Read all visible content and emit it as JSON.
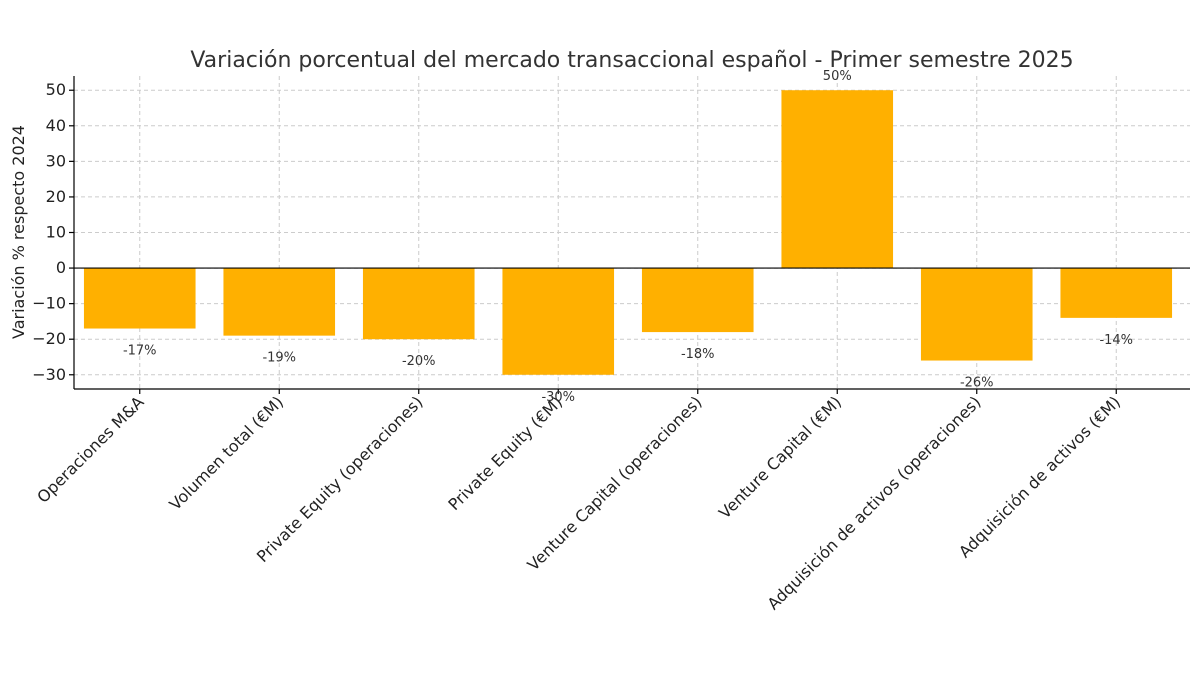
{
  "chart_data": {
    "type": "bar",
    "title": "Variación porcentual del mercado transaccional español - Primer semestre 2025",
    "xlabel": "",
    "ylabel": "Variación % respecto 2024",
    "categories": [
      "Operaciones M&A",
      "Volumen total (€M)",
      "Private Equity (operaciones)",
      "Private Equity (€M)",
      "Venture Capital (operaciones)",
      "Venture Capital (€M)",
      "Adquisición de activos (operaciones)",
      "Adquisición de activos (€M)"
    ],
    "values": [
      -17,
      -19,
      -20,
      -30,
      -18,
      50,
      -26,
      -14
    ],
    "data_labels": [
      "-17%",
      "-19%",
      "-20%",
      "-30%",
      "-18%",
      "50%",
      "-26%",
      "-14%"
    ],
    "ylim": [
      -34,
      54
    ],
    "yticks": [
      -30,
      -20,
      -10,
      0,
      10,
      20,
      30,
      40,
      50
    ],
    "grid": true,
    "legend": "none",
    "bar_color": "#FFB000"
  }
}
